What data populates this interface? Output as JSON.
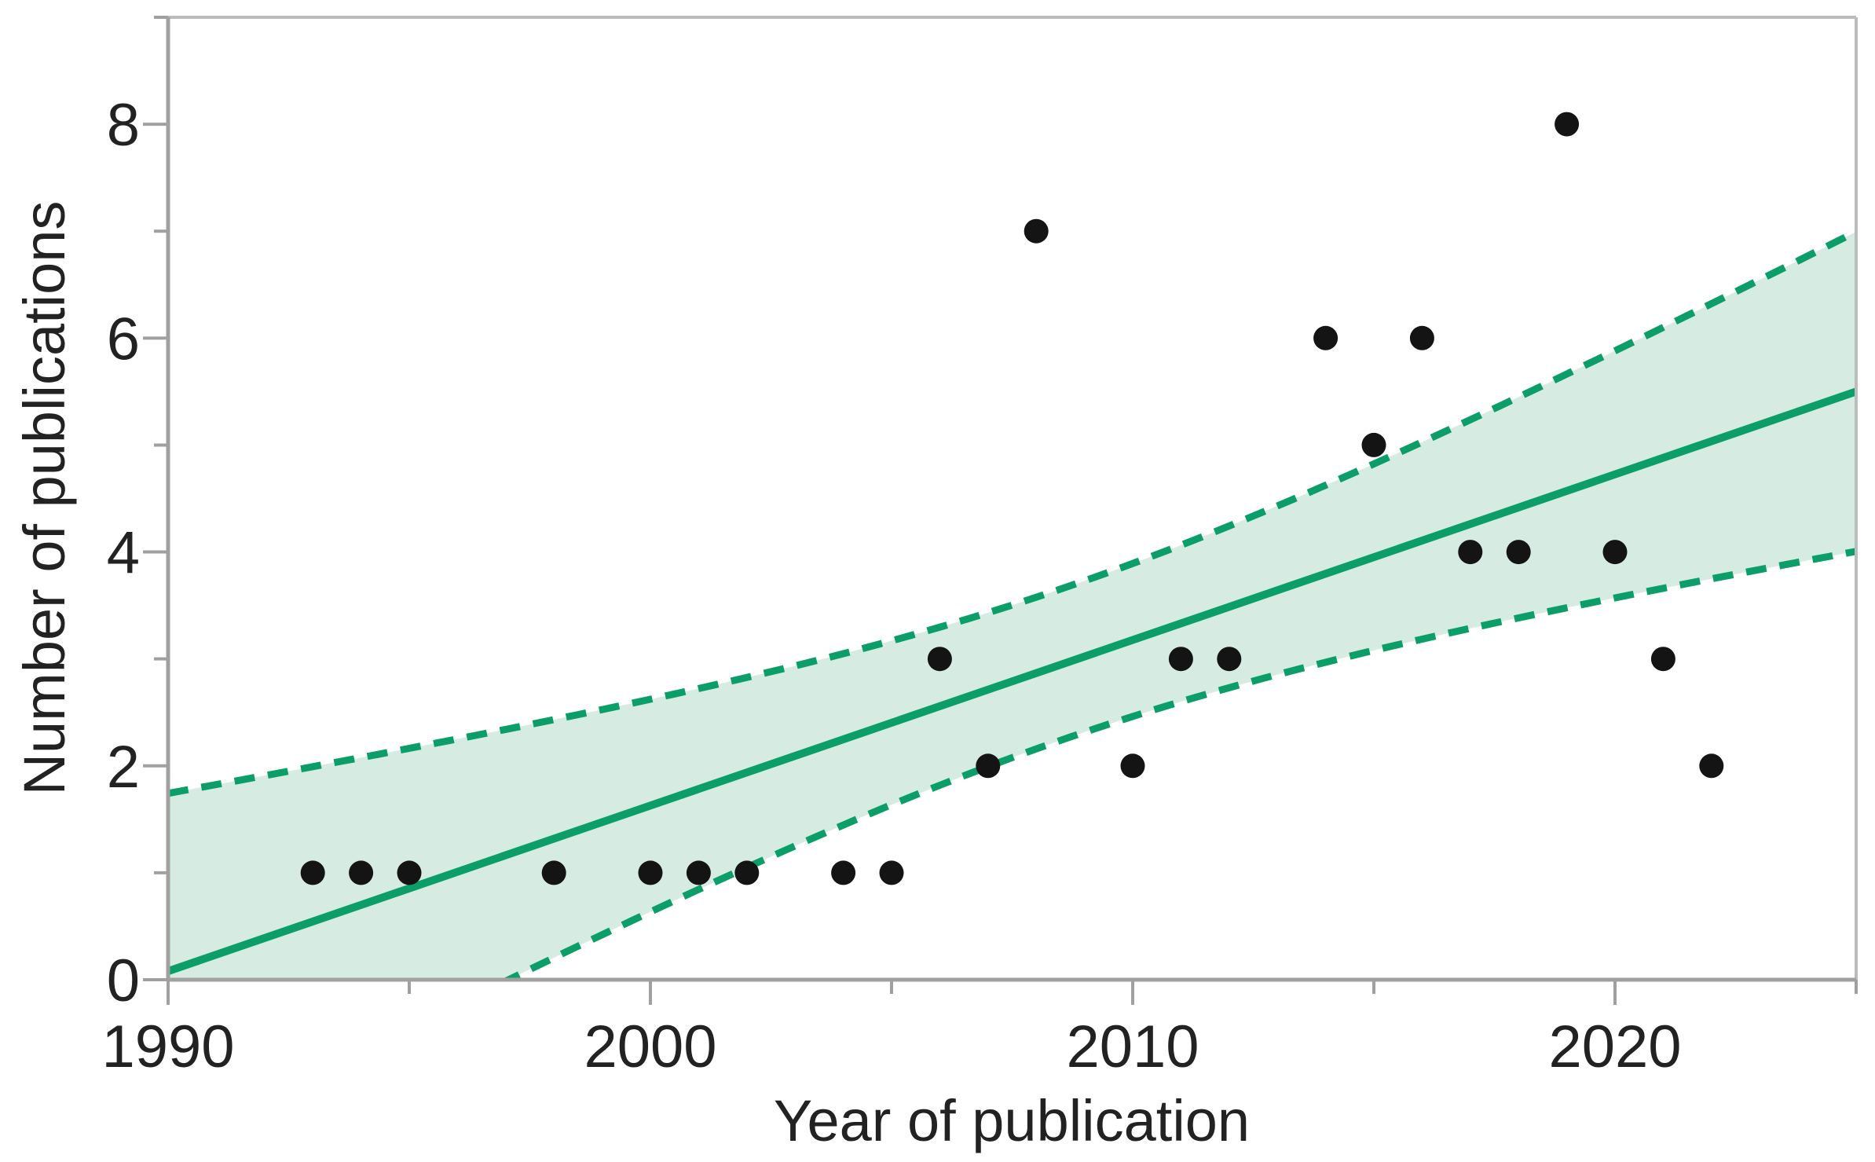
{
  "chart_data": {
    "type": "scatter",
    "title": "",
    "xlabel": "Year of publication",
    "ylabel": "Number of publications",
    "xlim": [
      1990,
      2025
    ],
    "ylim": [
      0,
      9
    ],
    "grid": false,
    "legend": null,
    "x_major_ticks": [
      1990,
      2000,
      2010,
      2020
    ],
    "x_minor_ticks": [
      1995,
      2005,
      2015,
      2025
    ],
    "y_major_ticks": [
      0,
      2,
      4,
      6,
      8
    ],
    "y_minor_ticks": [
      1,
      3,
      5,
      7,
      9
    ],
    "points": {
      "x": [
        1993,
        1994,
        1995,
        1998,
        2000,
        2001,
        2002,
        2004,
        2005,
        2006,
        2007,
        2008,
        2010,
        2011,
        2012,
        2014,
        2015,
        2016,
        2017,
        2018,
        2019,
        2020,
        2021,
        2022
      ],
      "y": [
        1,
        1,
        1,
        1,
        1,
        1,
        1,
        1,
        1,
        3,
        2,
        7,
        2,
        3,
        3,
        6,
        5,
        6,
        4,
        4,
        8,
        4,
        3,
        2
      ]
    },
    "fit_line": {
      "x1": 1990,
      "y1": 0.08,
      "x2": 2025,
      "y2": 5.5
    },
    "confidence_band": {
      "x_mean": 2008.67,
      "a": 0.5,
      "b": 0.0065
    },
    "colors": {
      "fit_line": "#0b9e69",
      "band_fill": "#d6ebe2",
      "point": "#141414",
      "axis": "#a0a0a0",
      "frame": "#bcbcbc",
      "tick_label": "#222222"
    }
  }
}
